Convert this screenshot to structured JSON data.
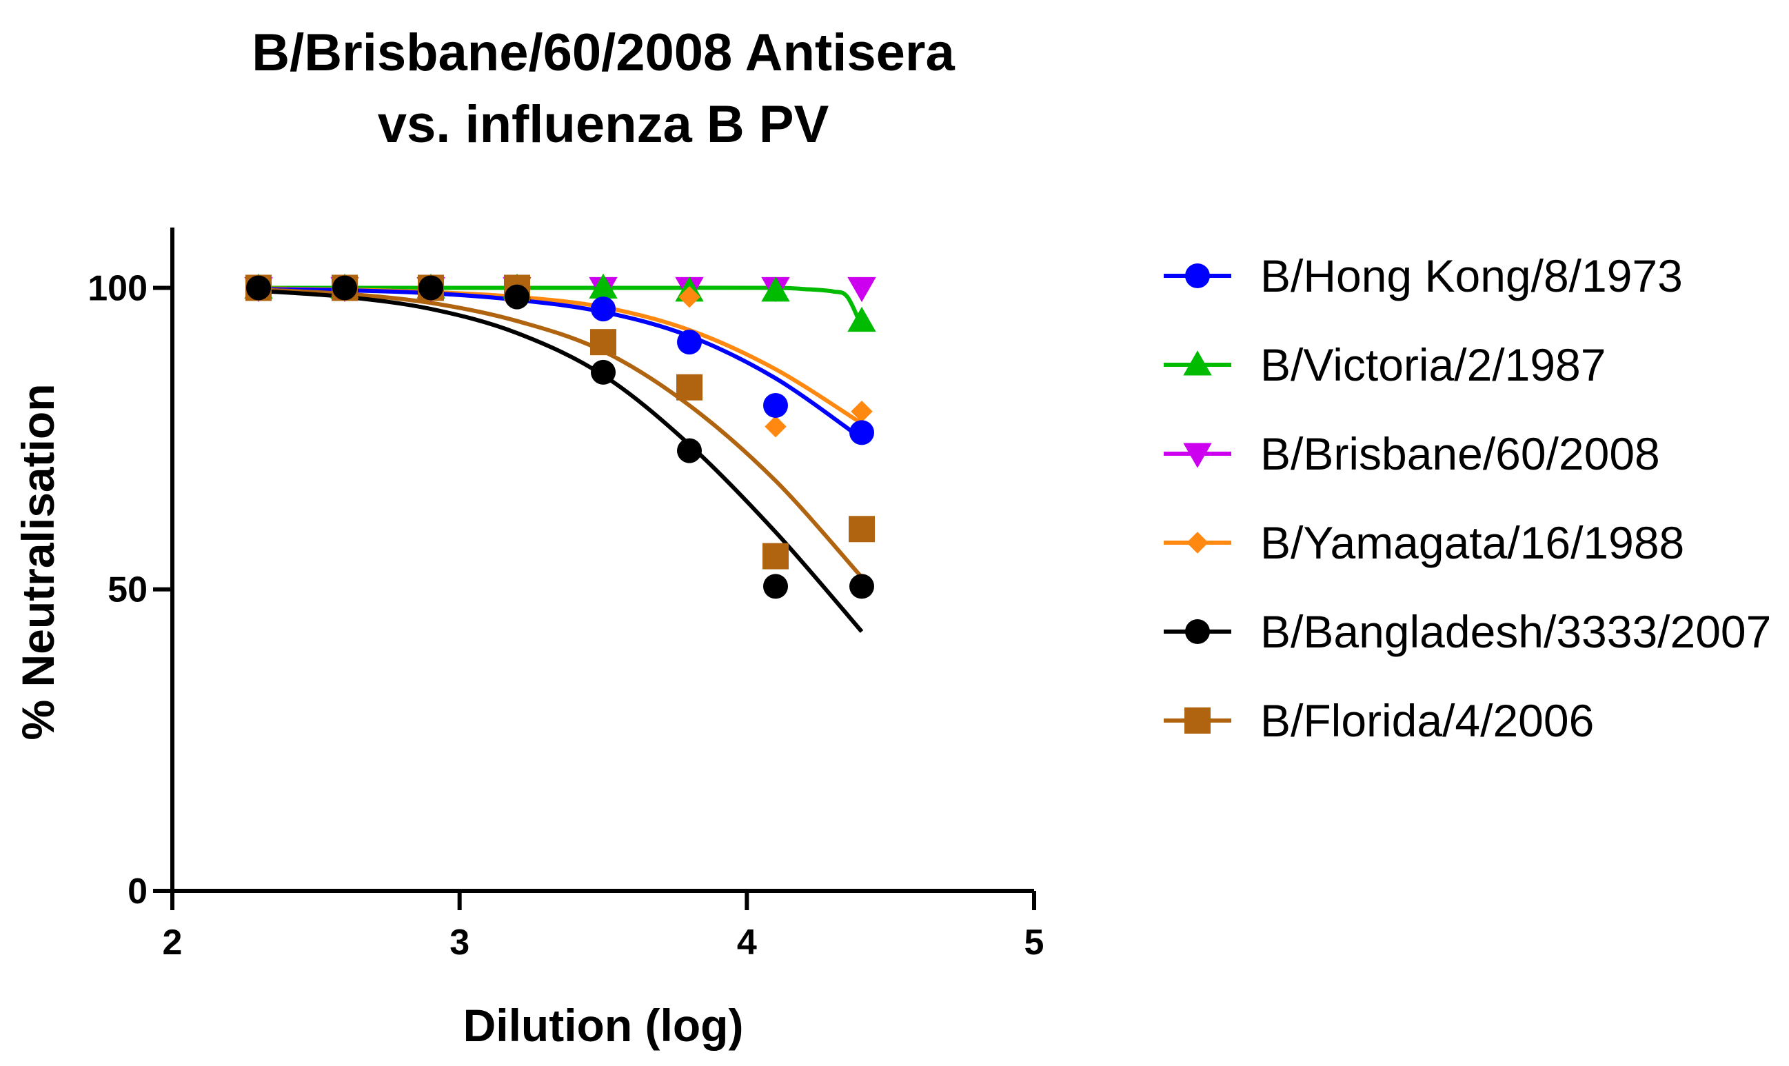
{
  "chart_data": {
    "type": "scatter",
    "title_lines": [
      "B/Brisbane/60/2008  Antisera",
      "vs.  influenza B PV"
    ],
    "xlabel": "Dilution (log)",
    "ylabel": "% Neutralisation",
    "xlim": [
      2,
      5
    ],
    "ylim": [
      0,
      110
    ],
    "xticks": [
      {
        "value": 2,
        "label": "2"
      },
      {
        "value": 3,
        "label": "3"
      },
      {
        "value": 4,
        "label": "4"
      },
      {
        "value": 5,
        "label": "5"
      }
    ],
    "yticks": [
      {
        "value": 0,
        "label": "0"
      },
      {
        "value": 50,
        "label": "50"
      },
      {
        "value": 100,
        "label": "100"
      }
    ],
    "x": [
      2.3,
      2.6,
      2.9,
      3.2,
      3.5,
      3.8,
      4.1,
      4.4
    ],
    "legend_position": "right",
    "series": [
      {
        "name": "B/Hong Kong/8/1973",
        "color": "#0000ff",
        "marker": "circle",
        "values": [
          100,
          100,
          100,
          100,
          96.5,
          91,
          80.5,
          76
        ],
        "fit": [
          [
            2.3,
            99.8
          ],
          [
            2.6,
            99.6
          ],
          [
            2.9,
            99.1
          ],
          [
            3.2,
            98.0
          ],
          [
            3.5,
            96.0
          ],
          [
            3.8,
            92.0
          ],
          [
            4.1,
            85.0
          ],
          [
            4.4,
            75.0
          ]
        ]
      },
      {
        "name": "B/Victoria/2/1987",
        "color": "#00bb00",
        "marker": "triangle-up",
        "values": [
          100,
          100,
          100,
          100,
          100,
          99.5,
          99.5,
          94.5
        ],
        "fit": [
          [
            2.3,
            100
          ],
          [
            2.6,
            100
          ],
          [
            2.9,
            100
          ],
          [
            3.2,
            100
          ],
          [
            3.5,
            100
          ],
          [
            3.8,
            100
          ],
          [
            4.1,
            100
          ],
          [
            4.2,
            99.8
          ],
          [
            4.3,
            99.4
          ],
          [
            4.35,
            98.5
          ],
          [
            4.4,
            93.5
          ]
        ]
      },
      {
        "name": "B/Brisbane/60/2008",
        "color": "#cc00ee",
        "marker": "triangle-down",
        "values": [
          100,
          100,
          100,
          100,
          100,
          100,
          100,
          100
        ],
        "fit": []
      },
      {
        "name": "B/Yamagata/16/1988",
        "color": "#ff8811",
        "marker": "diamond",
        "values": [
          100,
          100,
          100,
          100,
          96.5,
          98.5,
          77,
          79.5
        ],
        "fit": [
          [
            2.3,
            99.9
          ],
          [
            2.6,
            99.7
          ],
          [
            2.9,
            99.3
          ],
          [
            3.2,
            98.5
          ],
          [
            3.5,
            96.8
          ],
          [
            3.8,
            93.0
          ],
          [
            4.1,
            86.5
          ],
          [
            4.4,
            77.5
          ]
        ]
      },
      {
        "name": "B/Bangladesh/3333/2007",
        "color": "#000000",
        "marker": "circle",
        "values": [
          100,
          100,
          100,
          98.5,
          86,
          73,
          50.5,
          50.5
        ],
        "fit": [
          [
            2.3,
            99.5
          ],
          [
            2.6,
            98.5
          ],
          [
            2.9,
            96.5
          ],
          [
            3.2,
            92.5
          ],
          [
            3.5,
            85.5
          ],
          [
            3.8,
            74.0
          ],
          [
            4.1,
            59.5
          ],
          [
            4.4,
            43.0
          ]
        ]
      },
      {
        "name": "B/Florida/4/2006",
        "color": "#b0640f",
        "marker": "square",
        "values": [
          100,
          100,
          100,
          100,
          91,
          83.5,
          55.5,
          60
        ],
        "fit": [
          [
            2.3,
            99.7
          ],
          [
            2.6,
            99.0
          ],
          [
            2.9,
            97.5
          ],
          [
            3.2,
            94.5
          ],
          [
            3.5,
            89.5
          ],
          [
            3.8,
            80.5
          ],
          [
            4.1,
            68.0
          ],
          [
            4.4,
            52.0
          ]
        ]
      }
    ]
  }
}
